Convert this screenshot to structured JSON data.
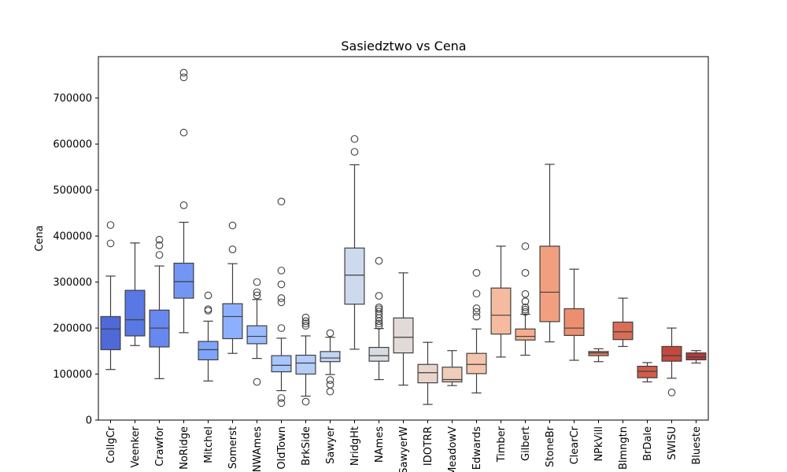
{
  "chart_data": {
    "type": "box",
    "title": "Sasiedztwo vs Cena",
    "xlabel": "",
    "ylabel": "Cena",
    "ylim": [
      0,
      790000
    ],
    "yticks": [
      0,
      100000,
      200000,
      300000,
      400000,
      500000,
      600000,
      700000
    ],
    "grid": false,
    "categories": [
      "CollgCr",
      "Veenker",
      "Crawfor",
      "NoRidge",
      "Mitchel",
      "Somerst",
      "NWAmes",
      "OldTown",
      "BrkSide",
      "Sawyer",
      "NridgHt",
      "NAmes",
      "SawyerW",
      "IDOTRR",
      "MeadowV",
      "Edwards",
      "Timber",
      "Gilbert",
      "StoneBr",
      "ClearCr",
      "NPkVill",
      "Blmngtn",
      "BrDale",
      "SWISU",
      "Blueste"
    ],
    "boxes": [
      {
        "whislo": 110000,
        "q1": 153000,
        "med": 198000,
        "q3": 225000,
        "whishi": 313000,
        "fliers": [
          384000,
          424000
        ],
        "color": "#4f69d9"
      },
      {
        "whislo": 162000,
        "q1": 183000,
        "med": 218000,
        "q3": 282000,
        "whishi": 385000,
        "fliers": [],
        "color": "#5a78e4"
      },
      {
        "whislo": 90000,
        "q1": 159000,
        "med": 200000,
        "q3": 239000,
        "whishi": 335000,
        "fliers": [
          359000,
          380000,
          392000
        ],
        "color": "#6788ee"
      },
      {
        "whislo": 190000,
        "q1": 265000,
        "med": 301000,
        "q3": 341000,
        "whishi": 430000,
        "fliers": [
          467000,
          625000,
          745000,
          755000
        ],
        "color": "#7396f5"
      },
      {
        "whislo": 85000,
        "q1": 131000,
        "med": 153000,
        "q3": 171000,
        "whishi": 215000,
        "fliers": [
          238000,
          241000,
          271000
        ],
        "color": "#7fa4fb"
      },
      {
        "whislo": 145000,
        "q1": 177000,
        "med": 225000,
        "q3": 253000,
        "whishi": 340000,
        "fliers": [
          371000,
          423000
        ],
        "color": "#8db0fe"
      },
      {
        "whislo": 134000,
        "q1": 166000,
        "med": 182000,
        "q3": 205000,
        "whishi": 262000,
        "fliers": [
          83000,
          271000,
          278000,
          300000
        ],
        "color": "#9abbff"
      },
      {
        "whislo": 64000,
        "q1": 105000,
        "med": 119000,
        "q3": 140000,
        "whishi": 178000,
        "fliers": [
          37000,
          48000,
          200000,
          256000,
          265000,
          295000,
          325000,
          475000
        ],
        "color": "#a7c5fe"
      },
      {
        "whislo": 52000,
        "q1": 100000,
        "med": 124000,
        "q3": 141000,
        "whishi": 183000,
        "fliers": [
          40000,
          205000,
          210000,
          215000,
          223000
        ],
        "color": "#b5cdfa"
      },
      {
        "whislo": 99000,
        "q1": 127000,
        "med": 135000,
        "q3": 149000,
        "whishi": 180000,
        "fliers": [
          62000,
          77000,
          87000,
          189000
        ],
        "color": "#c1d4f4"
      },
      {
        "whislo": 154000,
        "q1": 252000,
        "med": 315000,
        "q3": 374000,
        "whishi": 555000,
        "fliers": [
          583000,
          611000
        ],
        "color": "#cdd9ec"
      },
      {
        "whislo": 88000,
        "q1": 128000,
        "med": 140000,
        "q3": 158000,
        "whishi": 199000,
        "fliers": [
          205000,
          210000,
          215000,
          222000,
          230000,
          236000,
          241000,
          245000,
          270000,
          346000
        ],
        "color": "#d8dce2"
      },
      {
        "whislo": 76000,
        "q1": 146000,
        "med": 180000,
        "q3": 222000,
        "whishi": 320000,
        "fliers": [],
        "color": "#e1dad6"
      },
      {
        "whislo": 34000,
        "q1": 81000,
        "med": 103000,
        "q3": 121000,
        "whishi": 169000,
        "fliers": [],
        "color": "#e9d5cb"
      },
      {
        "whislo": 75000,
        "q1": 83000,
        "med": 88000,
        "q3": 115000,
        "whishi": 151000,
        "fliers": [],
        "color": "#f0cdbb"
      },
      {
        "whislo": 59000,
        "q1": 101000,
        "med": 121000,
        "q3": 145000,
        "whishi": 198000,
        "fliers": [
          225000,
          235000,
          243000,
          275000,
          320000
        ],
        "color": "#f4c5ad"
      },
      {
        "whislo": 137000,
        "q1": 187000,
        "med": 228000,
        "q3": 287000,
        "whishi": 378000,
        "fliers": [],
        "color": "#f6bb9e"
      },
      {
        "whislo": 141000,
        "q1": 174000,
        "med": 182000,
        "q3": 198000,
        "whishi": 230000,
        "fliers": [
          235000,
          240000,
          245000,
          258000,
          274000,
          320000,
          378000
        ],
        "color": "#f5ad8d"
      },
      {
        "whislo": 170000,
        "q1": 214000,
        "med": 278000,
        "q3": 378000,
        "whishi": 556000,
        "fliers": [],
        "color": "#f29f80"
      },
      {
        "whislo": 130000,
        "q1": 184000,
        "med": 200000,
        "q3": 242000,
        "whishi": 328000,
        "fliers": [],
        "color": "#ec8f71"
      },
      {
        "whislo": 127000,
        "q1": 140000,
        "med": 146000,
        "q3": 149000,
        "whishi": 155000,
        "fliers": [],
        "color": "#e57f64"
      },
      {
        "whislo": 160000,
        "q1": 175000,
        "med": 192000,
        "q3": 213000,
        "whishi": 265000,
        "fliers": [],
        "color": "#da6d55"
      },
      {
        "whislo": 83000,
        "q1": 92000,
        "med": 106000,
        "q3": 117000,
        "whishi": 125000,
        "fliers": [],
        "color": "#d05d4a"
      },
      {
        "whislo": 91000,
        "q1": 128000,
        "med": 140000,
        "q3": 160000,
        "whishi": 200000,
        "fliers": [
          60000
        ],
        "color": "#c3493f"
      },
      {
        "whislo": 124000,
        "q1": 131000,
        "med": 137000,
        "q3": 146000,
        "whishi": 151000,
        "fliers": [],
        "color": "#b83a3b"
      }
    ]
  }
}
